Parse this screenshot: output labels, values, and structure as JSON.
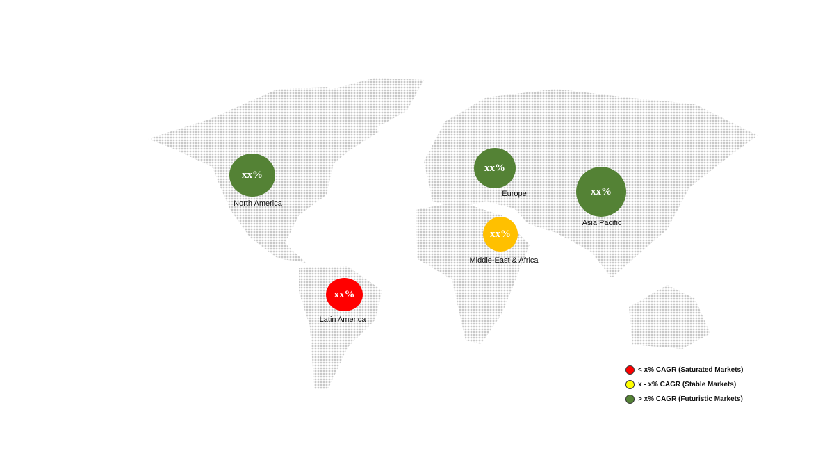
{
  "colors": {
    "saturated": "#ff0000",
    "stable": "#ffc000",
    "stable_legend": "#ffff00",
    "futuristic": "#548235",
    "map_dots": "#c8c8c8"
  },
  "regions": [
    {
      "name": "North America",
      "value": "xx%",
      "category": "futuristic"
    },
    {
      "name": "Europe",
      "value": "xx%",
      "category": "futuristic"
    },
    {
      "name": "Asia Pacific",
      "value": "xx%",
      "category": "futuristic"
    },
    {
      "name": "Middle-East & Africa",
      "value": "xx%",
      "category": "stable"
    },
    {
      "name": "Latin America",
      "value": "xx%",
      "category": "saturated"
    }
  ],
  "legend": [
    {
      "label": "< x% CAGR (Saturated Markets)",
      "category": "saturated"
    },
    {
      "label": "x - x% CAGR (Stable Markets)",
      "category": "stable"
    },
    {
      "label": "> x% CAGR (Futuristic Markets)",
      "category": "futuristic"
    }
  ]
}
